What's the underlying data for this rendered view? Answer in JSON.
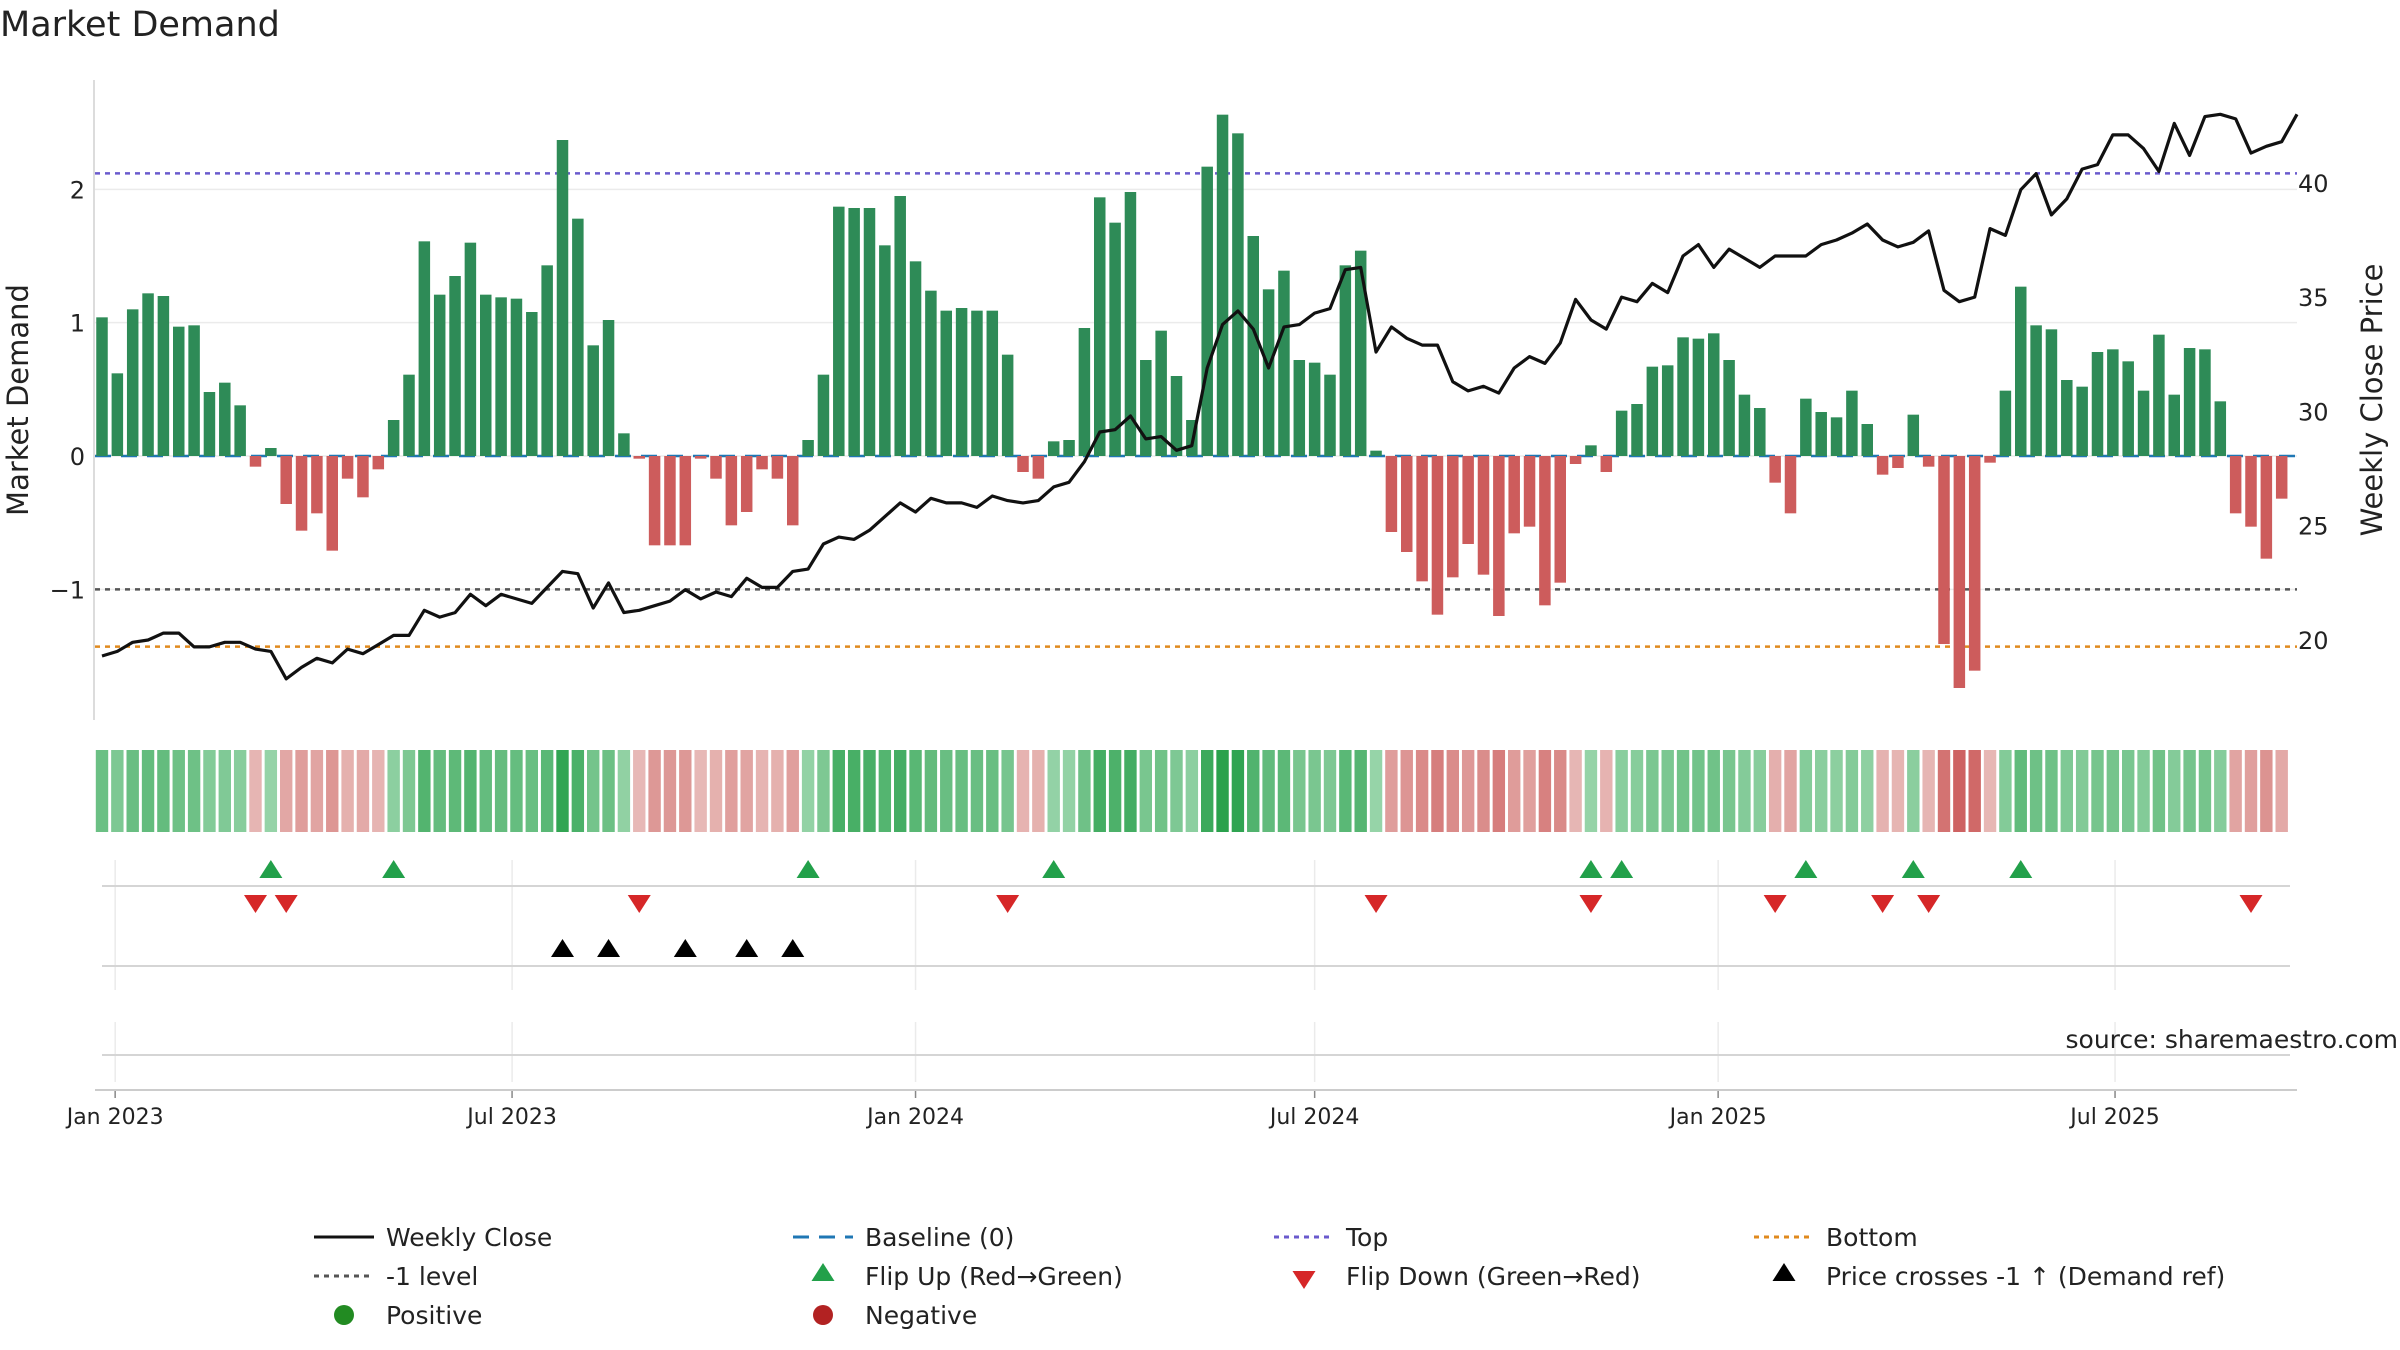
{
  "chart_data": {
    "type": "bar",
    "title": "Market Demand",
    "ylabel_left": "Market Demand",
    "ylabel_right": "Weekly Close Price",
    "source": "source: sharemaestro.com",
    "start_date": "2022-12-26",
    "ylim_left": [
      -1.98,
      2.82
    ],
    "yticks_left": [
      -1,
      0,
      1,
      2
    ],
    "ylim_right": [
      16.5,
      44.5
    ],
    "yticks_right": [
      20,
      25,
      30,
      35,
      40
    ],
    "x_ticks": [
      "Jan 2023",
      "Jul 2023",
      "Jan 2024",
      "Jul 2024",
      "Jan 2025",
      "Jul 2025"
    ],
    "x_tick_dates": [
      "2023-01-01",
      "2023-07-01",
      "2024-01-01",
      "2024-07-01",
      "2025-01-01",
      "2025-07-01"
    ],
    "reference_lines": {
      "baseline": 0,
      "top": 2.12,
      "minus_one": -1,
      "bottom": -1.43
    },
    "series": [
      {
        "name": "Market Demand",
        "values": [
          1.04,
          0.62,
          1.1,
          1.22,
          1.2,
          0.97,
          0.98,
          0.48,
          0.55,
          0.38,
          -0.08,
          0.06,
          -0.36,
          -0.56,
          -0.43,
          -0.71,
          -0.17,
          -0.31,
          -0.1,
          0.27,
          0.61,
          1.61,
          1.21,
          1.35,
          1.6,
          1.21,
          1.19,
          1.18,
          1.08,
          1.43,
          2.37,
          1.78,
          0.83,
          1.02,
          0.17,
          -0.02,
          -0.67,
          -0.67,
          -0.67,
          -0.02,
          -0.17,
          -0.52,
          -0.42,
          -0.1,
          -0.17,
          -0.52,
          0.12,
          0.61,
          1.87,
          1.86,
          1.86,
          1.58,
          1.95,
          1.46,
          1.24,
          1.09,
          1.11,
          1.09,
          1.09,
          0.76,
          -0.12,
          -0.17,
          0.11,
          0.12,
          0.96,
          1.94,
          1.75,
          1.98,
          0.72,
          0.94,
          0.6,
          0.27,
          2.17,
          2.56,
          2.42,
          1.65,
          1.25,
          1.39,
          0.72,
          0.7,
          0.61,
          1.43,
          1.54,
          0.04,
          -0.57,
          -0.72,
          -0.94,
          -1.19,
          -0.91,
          -0.66,
          -0.89,
          -1.2,
          -0.58,
          -0.53,
          -1.12,
          -0.95,
          -0.06,
          0.08,
          -0.12,
          0.34,
          0.39,
          0.67,
          0.68,
          0.89,
          0.88,
          0.92,
          0.72,
          0.46,
          0.36,
          -0.2,
          -0.43,
          0.43,
          0.33,
          0.29,
          0.49,
          0.24,
          -0.14,
          -0.09,
          0.31,
          -0.08,
          -1.41,
          -1.74,
          -1.61,
          -0.05,
          0.49,
          1.27,
          0.98,
          0.95,
          0.57,
          0.52,
          0.78,
          0.8,
          0.71,
          0.49,
          0.91,
          0.46,
          0.81,
          0.8,
          0.41,
          -0.43,
          -0.53,
          -0.77,
          -0.32
        ]
      },
      {
        "name": "Weekly Close",
        "values": [
          19.3,
          19.5,
          19.9,
          20.0,
          20.3,
          20.3,
          19.7,
          19.7,
          19.9,
          19.9,
          19.6,
          19.5,
          18.3,
          18.8,
          19.2,
          19.0,
          19.6,
          19.4,
          19.8,
          20.2,
          20.2,
          21.3,
          21.0,
          21.2,
          22.0,
          21.5,
          22.0,
          21.8,
          21.6,
          22.3,
          23.0,
          22.9,
          21.4,
          22.5,
          21.2,
          21.3,
          21.5,
          21.7,
          22.2,
          21.8,
          22.1,
          21.9,
          22.7,
          22.3,
          22.3,
          23.0,
          23.1,
          24.2,
          24.5,
          24.4,
          24.8,
          25.4,
          26.0,
          25.6,
          26.2,
          26.0,
          26.0,
          25.8,
          26.3,
          26.1,
          26.0,
          26.1,
          26.7,
          26.9,
          27.8,
          29.1,
          29.2,
          29.8,
          28.8,
          28.9,
          28.3,
          28.5,
          31.9,
          33.8,
          34.4,
          33.6,
          31.9,
          33.7,
          33.8,
          34.3,
          34.5,
          36.2,
          36.3,
          32.6,
          33.7,
          33.2,
          32.9,
          32.9,
          31.3,
          30.9,
          31.1,
          30.8,
          31.9,
          32.4,
          32.1,
          33.0,
          34.9,
          34.0,
          33.6,
          35.0,
          34.8,
          35.6,
          35.2,
          36.8,
          37.3,
          36.3,
          37.1,
          36.7,
          36.3,
          36.8,
          36.8,
          36.8,
          37.3,
          37.5,
          37.8,
          38.2,
          37.5,
          37.2,
          37.4,
          37.9,
          35.3,
          34.8,
          35.0,
          38.0,
          37.7,
          39.7,
          40.4,
          38.6,
          39.3,
          40.6,
          40.8,
          42.1,
          42.1,
          41.5,
          40.5,
          42.6,
          41.2,
          42.9,
          43.0,
          42.8,
          41.3,
          41.6,
          41.8,
          43.0
        ]
      }
    ],
    "flip_up_weeks": [
      11,
      19,
      46,
      62,
      97,
      99,
      111,
      118,
      125
    ],
    "flip_down_weeks": [
      10,
      12,
      35,
      59,
      83,
      97,
      109,
      116,
      119,
      140
    ],
    "price_cross_weeks": [
      30,
      33,
      38,
      42,
      45
    ],
    "legend": {
      "weekly_close": "Weekly Close",
      "baseline": "Baseline (0)",
      "top": "Top",
      "bottom": "Bottom",
      "minus_one": "-1 level",
      "flip_up": "Flip Up (Red→Green)",
      "flip_down": "Flip Down (Green→Red)",
      "price_cross": "Price crosses -1 ↑ (Demand ref)",
      "positive": "Positive",
      "negative": "Negative"
    },
    "colors": {
      "positive_bar": "#2e8b57",
      "negative_bar": "#cd5c5c",
      "price_line": "#111111",
      "baseline": "#1f77b4",
      "top": "#6a5acd",
      "minus_one": "#555555",
      "bottom": "#e08a1e",
      "flip_up": "#22a04a",
      "flip_down": "#d62728",
      "price_cross": "#000000",
      "positive_dot": "#228b22",
      "negative_dot": "#b22222"
    }
  }
}
